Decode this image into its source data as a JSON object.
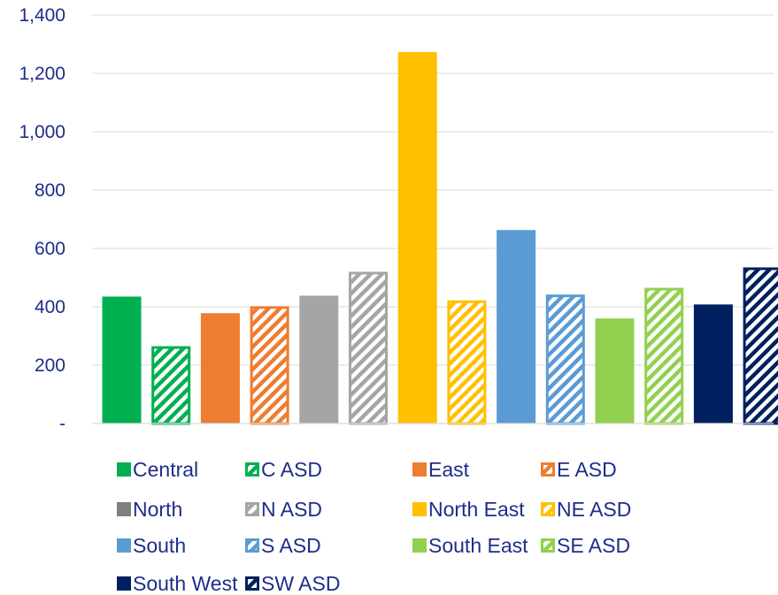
{
  "chart_data": {
    "type": "bar",
    "categories": [
      "Central",
      "C ASD",
      "East",
      "E ASD",
      "North",
      "N ASD",
      "North East",
      "NE ASD",
      "South",
      "S ASD",
      "South East",
      "SE ASD",
      "South West",
      "SW ASD"
    ],
    "values": [
      435,
      265,
      378,
      402,
      438,
      520,
      1273,
      422,
      663,
      442,
      360,
      465,
      408,
      535
    ],
    "colors": [
      "#00b050",
      "#00b050",
      "#ed7d31",
      "#ed7d31",
      "#a5a5a5",
      "#a5a5a5",
      "#ffc000",
      "#ffc000",
      "#5b9bd5",
      "#5b9bd5",
      "#92d050",
      "#92d050",
      "#002060",
      "#002060"
    ],
    "hatched": [
      false,
      true,
      false,
      true,
      false,
      true,
      false,
      true,
      false,
      true,
      false,
      true,
      false,
      true
    ],
    "ylim": [
      0,
      1400
    ],
    "yticks": [
      0,
      200,
      400,
      600,
      800,
      1000,
      1200,
      1400
    ],
    "ytick_labels": [
      "-",
      "200",
      "400",
      "600",
      "800",
      "1,000",
      "1,200",
      "1,400"
    ],
    "grid": true,
    "legend_position": "bottom",
    "legend": [
      {
        "label": "Central",
        "color": "#00b050",
        "hatched": false
      },
      {
        "label": "C ASD",
        "color": "#00b050",
        "hatched": true
      },
      {
        "label": "East",
        "color": "#ed7d31",
        "hatched": false
      },
      {
        "label": "E ASD",
        "color": "#ed7d31",
        "hatched": true
      },
      {
        "label": "North",
        "color": "#7f7f7f",
        "hatched": false
      },
      {
        "label": "N ASD",
        "color": "#a5a5a5",
        "hatched": true
      },
      {
        "label": "North East",
        "color": "#ffc000",
        "hatched": false
      },
      {
        "label": "NE ASD",
        "color": "#ffc000",
        "hatched": true
      },
      {
        "label": "South",
        "color": "#5b9bd5",
        "hatched": false
      },
      {
        "label": "S ASD",
        "color": "#5b9bd5",
        "hatched": true
      },
      {
        "label": "South East",
        "color": "#92d050",
        "hatched": false
      },
      {
        "label": "SE ASD",
        "color": "#92d050",
        "hatched": true
      },
      {
        "label": "South West",
        "color": "#002060",
        "hatched": false
      },
      {
        "label": "SW ASD",
        "color": "#002060",
        "hatched": true
      }
    ]
  }
}
